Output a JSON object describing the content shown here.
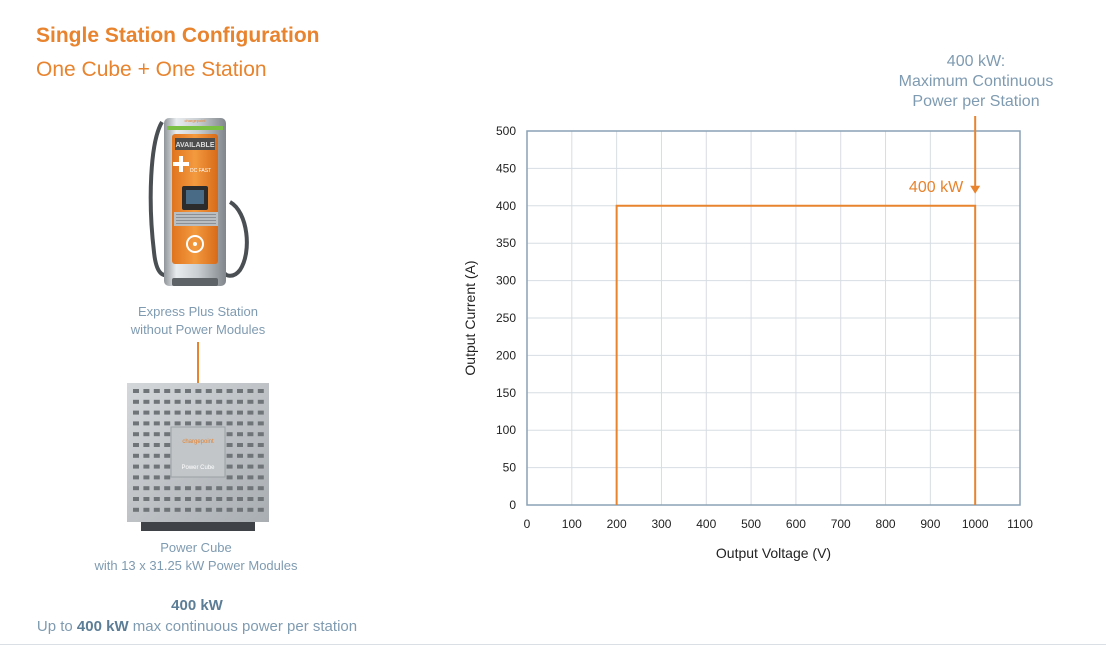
{
  "header": {
    "title": "Single Station Configuration",
    "subtitle": "One Cube + One Station"
  },
  "station": {
    "caption_line1": "Express Plus Station",
    "caption_line2": "without Power Modules",
    "screen_text": "AVAILABLE",
    "brand_text": "chargepoint",
    "dc_text": "DC FAST"
  },
  "cube": {
    "caption_line1": "Power Cube",
    "caption_line2": "with 13 x 31.25 kW Power Modules",
    "brand_text": "chargepoint",
    "label_text": "Power Cube"
  },
  "summary": {
    "power": "400 kW",
    "line_prefix": "Up to ",
    "line_bold": "400 kW",
    "line_suffix": " max continuous power per station"
  },
  "annotation": {
    "line1": "400 kW:",
    "line2": "Maximum Continuous",
    "line3": "Power per Station"
  },
  "colors": {
    "accent": "#e8832e",
    "caption": "#7f9bb1",
    "grid": "#d6dde3",
    "frame": "#8aa2b6"
  },
  "chart_data": {
    "type": "line",
    "xlabel": "Output Voltage (V)",
    "ylabel": "Output Current (A)",
    "xlim": [
      0,
      1100
    ],
    "ylim": [
      0,
      500
    ],
    "xticks": [
      0,
      100,
      200,
      300,
      400,
      500,
      600,
      700,
      800,
      900,
      1000,
      1100
    ],
    "yticks": [
      0,
      50,
      100,
      150,
      200,
      250,
      300,
      350,
      400,
      450,
      500
    ],
    "grid": true,
    "series": [
      {
        "x": [
          200,
          200,
          1000,
          1000
        ],
        "y": [
          0,
          400,
          400,
          0
        ]
      }
    ],
    "annotations": [
      {
        "text": "400 kW",
        "x": 1000,
        "y": 400
      }
    ]
  }
}
